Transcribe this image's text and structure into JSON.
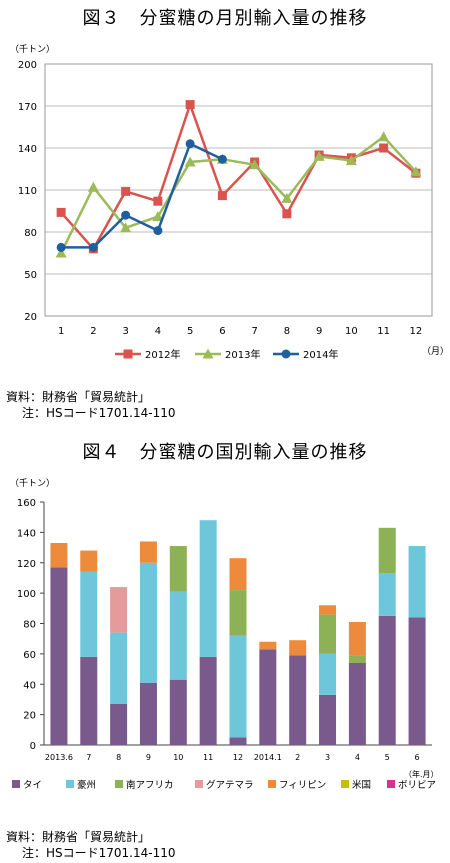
{
  "figure3": {
    "title": "図３　分蜜糖の月別輸入量の推移",
    "unit_label": "（千トン）",
    "x_unit": "（月）",
    "source_line": "資料：財務省「貿易統計」",
    "note_line": "注：HSコード1701.14-110"
  },
  "figure4": {
    "title": "図４　分蜜糖の国別輸入量の推移",
    "unit_label": "（千トン）",
    "x_unit": "（年.月）",
    "source_line": "資料：財務省「貿易統計」",
    "note_line": "注：HSコード1701.14-110"
  },
  "chart_data": [
    {
      "type": "line",
      "categories": [
        "1",
        "2",
        "3",
        "4",
        "5",
        "6",
        "7",
        "8",
        "9",
        "10",
        "11",
        "12"
      ],
      "ylim": [
        20,
        200
      ],
      "yticks": [
        20,
        50,
        80,
        110,
        140,
        170,
        200
      ],
      "grid": true,
      "legend_position": "bottom",
      "series": [
        {
          "name": "2012年",
          "color": "#d9534f",
          "marker": "square",
          "values": [
            94,
            68,
            109,
            102,
            171,
            106,
            130,
            93,
            135,
            133,
            140,
            122
          ]
        },
        {
          "name": "2013年",
          "color": "#9bbb59",
          "marker": "triangle",
          "values": [
            65,
            112,
            83,
            91,
            130,
            132,
            128,
            104,
            134,
            131,
            148,
            123
          ]
        },
        {
          "name": "2014年",
          "color": "#1f5f9e",
          "marker": "circle",
          "values": [
            69,
            69,
            92,
            81,
            143,
            132,
            null,
            null,
            null,
            null,
            null,
            null
          ]
        }
      ]
    },
    {
      "type": "bar",
      "stacked": true,
      "categories": [
        "2013.6",
        "7",
        "8",
        "9",
        "10",
        "11",
        "12",
        "2014.1",
        "2",
        "3",
        "4",
        "5",
        "6"
      ],
      "ylim": [
        0,
        160
      ],
      "yticks": [
        0,
        20,
        40,
        60,
        80,
        100,
        120,
        140,
        160
      ],
      "grid": false,
      "legend_position": "bottom",
      "series": [
        {
          "name": "タイ",
          "color": "#7a5a8c",
          "values": [
            117,
            58,
            27,
            41,
            43,
            58,
            5,
            63,
            59,
            33,
            54,
            85,
            84
          ]
        },
        {
          "name": "豪州",
          "color": "#6ec6da",
          "values": [
            0,
            56,
            47,
            79,
            58,
            90,
            67,
            0,
            0,
            27,
            0,
            28,
            47
          ]
        },
        {
          "name": "南アフリカ",
          "color": "#8db255",
          "values": [
            0,
            0,
            0,
            0,
            30,
            0,
            30,
            0,
            0,
            26,
            5,
            30,
            0
          ]
        },
        {
          "name": "グアテマラ",
          "color": "#e59b9b",
          "values": [
            0,
            0,
            30,
            0,
            0,
            0,
            0,
            0,
            0,
            0,
            0,
            0,
            0
          ]
        },
        {
          "name": "フィリピン",
          "color": "#ee8a3c",
          "values": [
            16,
            14,
            0,
            14,
            0,
            0,
            21,
            5,
            10,
            6,
            22,
            0,
            0
          ]
        },
        {
          "name": "米国",
          "color": "#c4c000",
          "values": [
            0,
            0,
            0,
            0,
            0,
            0,
            0,
            0,
            0,
            0,
            0,
            0,
            0
          ]
        },
        {
          "name": "ボリビア",
          "color": "#d6338f",
          "values": [
            0,
            0,
            0,
            0,
            0,
            0,
            0,
            0,
            0,
            0,
            0,
            0,
            0
          ]
        }
      ]
    }
  ]
}
